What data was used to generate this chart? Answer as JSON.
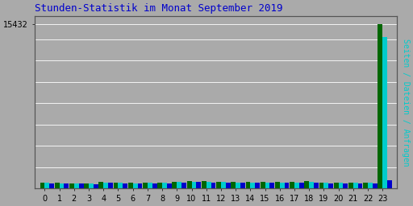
{
  "title": "Stunden-Statistik im Monat September 2019",
  "title_color": "#0000cc",
  "background_color": "#aaaaaa",
  "plot_bg_color": "#aaaaaa",
  "ylabel_right": "Seiten / Dateien / Anfragen",
  "hours": [
    0,
    1,
    2,
    3,
    4,
    5,
    6,
    7,
    8,
    9,
    10,
    11,
    12,
    13,
    14,
    15,
    16,
    17,
    18,
    19,
    20,
    21,
    22,
    23
  ],
  "seiten": [
    580,
    510,
    500,
    480,
    610,
    560,
    520,
    575,
    565,
    650,
    690,
    660,
    645,
    590,
    595,
    610,
    615,
    625,
    665,
    560,
    555,
    555,
    560,
    15432
  ],
  "dateien": [
    535,
    475,
    465,
    438,
    565,
    510,
    478,
    535,
    510,
    595,
    625,
    605,
    598,
    548,
    548,
    555,
    558,
    568,
    605,
    522,
    518,
    512,
    522,
    14200
  ],
  "anfragen": [
    495,
    452,
    442,
    415,
    530,
    485,
    455,
    505,
    488,
    562,
    592,
    572,
    572,
    518,
    518,
    522,
    528,
    538,
    572,
    492,
    488,
    482,
    492,
    800
  ],
  "seiten_color": "#006600",
  "dateien_color": "#00cccc",
  "anfragen_color": "#0000cc",
  "ylim": [
    0,
    16200
  ],
  "ytick_val": 15432,
  "bar_width": 0.32
}
